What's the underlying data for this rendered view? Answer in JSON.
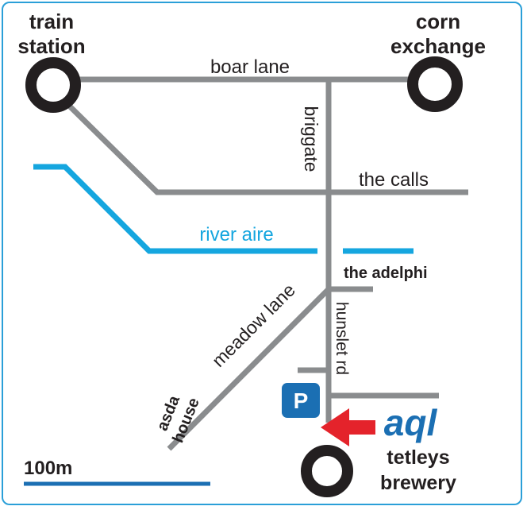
{
  "colors": {
    "road": "#8a8c8e",
    "river": "#15a6df",
    "station_ring": "#231f20",
    "text": "#231f20",
    "parking_bg": "#1b6fb3",
    "arrow": "#e4232b",
    "brand": "#1b6fb3",
    "scale_bar": "#1b6fb3",
    "frame": "#2a9fd8"
  },
  "landmarks": {
    "train_station": [
      "train",
      "station"
    ],
    "corn_exchange": [
      "corn",
      "exchange"
    ],
    "tetleys_brewery": [
      "tetleys",
      "brewery"
    ],
    "asda_house": [
      "asda",
      "house"
    ],
    "the_adelphi": "the adelphi"
  },
  "streets": {
    "boar_lane": "boar lane",
    "briggate": "briggate",
    "the_calls": "the calls",
    "meadow_lane": "meadow lane",
    "hunslet_rd": "hunslet rd"
  },
  "river": {
    "label": "river aire"
  },
  "parking": {
    "label": "P"
  },
  "brand": {
    "label": "aql"
  },
  "scale": {
    "label": "100m"
  },
  "icons": [
    "station-ring-icon",
    "parking-icon",
    "arrow-left-icon"
  ]
}
